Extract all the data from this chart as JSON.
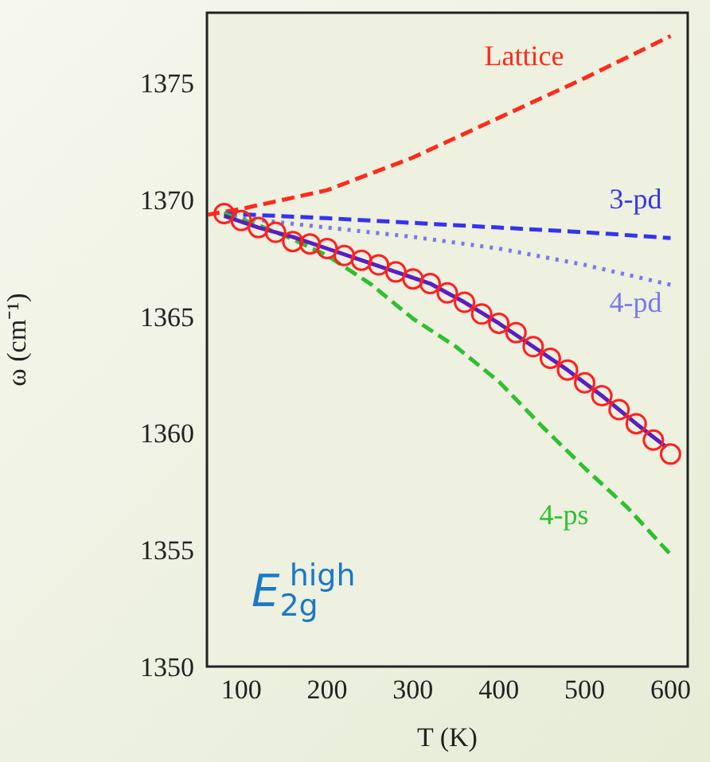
{
  "chart_data": {
    "type": "line",
    "xlabel": "T (K)",
    "ylabel": "ω (cm⁻¹)",
    "xlim": [
      60,
      620
    ],
    "xticks": [
      100,
      200,
      300,
      400,
      500,
      600
    ],
    "ylim": [
      1350,
      1378
    ],
    "yticks": [
      1350,
      1355,
      1360,
      1365,
      1370,
      1375
    ],
    "legend": false,
    "annotations": [
      "E$_{2g}$$^{high}$"
    ],
    "series": [
      {
        "name": "Lattice",
        "line_style": "dashed",
        "color": "#ff2a1a",
        "x": [
          60,
          100,
          200,
          300,
          400,
          500,
          600
        ],
        "values": [
          1369.35,
          1369.6,
          1370.4,
          1371.8,
          1373.5,
          1375.2,
          1377.0
        ]
      },
      {
        "name": "3-pd",
        "line_style": "dashed",
        "color": "#3434ee",
        "x": [
          80,
          200,
          300,
          400,
          500,
          600
        ],
        "values": [
          1369.4,
          1369.2,
          1369.0,
          1368.8,
          1368.6,
          1368.35
        ]
      },
      {
        "name": "4-pd",
        "line_style": "dotted",
        "color": "#7878f2",
        "x": [
          80,
          150,
          200,
          300,
          400,
          500,
          600
        ],
        "values": [
          1369.3,
          1369.0,
          1368.8,
          1368.4,
          1367.9,
          1367.2,
          1366.35
        ]
      },
      {
        "name": "4-ps",
        "line_style": "dashed",
        "color": "#2ec02e",
        "x": [
          80,
          120,
          160,
          200,
          250,
          300,
          350,
          400,
          450,
          500,
          550,
          600
        ],
        "values": [
          1369.4,
          1368.9,
          1368.3,
          1367.6,
          1366.4,
          1364.9,
          1363.7,
          1362.2,
          1360.3,
          1358.5,
          1356.8,
          1354.8
        ]
      },
      {
        "line_style": "solid",
        "color": "#5a1fc0",
        "x": [
          80,
          120,
          160,
          200,
          240,
          280,
          320,
          360,
          400,
          440,
          480,
          520,
          560,
          595
        ],
        "values": [
          1369.3,
          1368.8,
          1368.4,
          1367.9,
          1367.4,
          1366.9,
          1366.4,
          1365.6,
          1364.7,
          1363.7,
          1362.7,
          1361.6,
          1360.4,
          1359.4
        ]
      },
      {
        "type": "scatter",
        "marker": "circle",
        "color": "#ff2020",
        "x": [
          80,
          100,
          120,
          140,
          160,
          180,
          200,
          220,
          240,
          260,
          280,
          300,
          320,
          340,
          360,
          380,
          400,
          420,
          440,
          460,
          480,
          500,
          520,
          540,
          560,
          580,
          600
        ],
        "values": [
          1369.4,
          1369.1,
          1368.8,
          1368.6,
          1368.2,
          1368.1,
          1367.9,
          1367.6,
          1367.4,
          1367.2,
          1366.9,
          1366.6,
          1366.4,
          1366.0,
          1365.6,
          1365.1,
          1364.7,
          1364.3,
          1363.7,
          1363.2,
          1362.7,
          1362.15,
          1361.6,
          1361.0,
          1360.4,
          1359.7,
          1359.1
        ]
      }
    ]
  }
}
